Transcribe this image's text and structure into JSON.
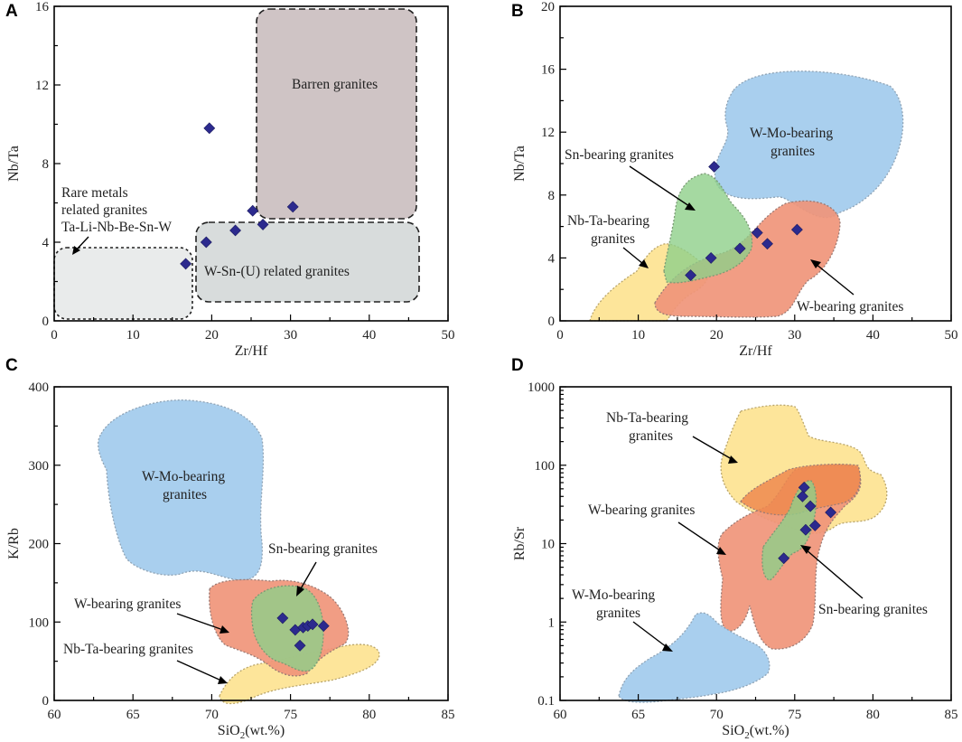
{
  "chart_data": [
    {
      "panel": "A",
      "type": "scatter",
      "title": "",
      "xlabel": "Zr/Hf",
      "ylabel": "Nb/Ta",
      "xlim": [
        0,
        50
      ],
      "ylim": [
        0,
        16
      ],
      "xticks": [
        0,
        10,
        20,
        30,
        40,
        50
      ],
      "yticks": [
        0,
        4,
        8,
        12,
        16
      ],
      "fields": [
        {
          "label": "Barren granites",
          "color": "#cfc4c5"
        },
        {
          "label": "W-Sn-(U) related granites",
          "color": "#d8dcdc"
        },
        {
          "label": "Rare metals related granites Ta-Li-Nb-Be-Sn-W",
          "color": "#e9ebeb"
        }
      ],
      "annotations": [
        "Barren granites",
        "W-Sn-(U) related granites",
        "Rare metals",
        "related granites",
        "Ta-Li-Nb-Be-Sn-W"
      ],
      "points": [
        {
          "x": 16.7,
          "y": 2.9
        },
        {
          "x": 19.3,
          "y": 4.0
        },
        {
          "x": 19.7,
          "y": 9.8
        },
        {
          "x": 23.0,
          "y": 4.6
        },
        {
          "x": 25.2,
          "y": 5.6
        },
        {
          "x": 26.5,
          "y": 4.9
        },
        {
          "x": 30.3,
          "y": 5.8
        }
      ]
    },
    {
      "panel": "B",
      "type": "scatter",
      "xlabel": "Zr/Hf",
      "ylabel": "Nb/Ta",
      "xlim": [
        0,
        50
      ],
      "ylim": [
        0,
        20
      ],
      "xticks": [
        0,
        10,
        20,
        30,
        40,
        50
      ],
      "yticks": [
        0,
        4,
        8,
        12,
        16,
        20
      ],
      "fields": [
        {
          "label": "W-Mo-bearing granites",
          "color": "#a9cfee"
        },
        {
          "label": "Sn-bearing granites",
          "color": "#9fd49a"
        },
        {
          "label": "Nb-Ta-bearing granites",
          "color": "#fde59a"
        },
        {
          "label": "W-bearing granites",
          "color": "#f0957a"
        }
      ],
      "annotations": [
        "W-Mo-bearing",
        "granites",
        "Sn-bearing granites",
        "Nb-Ta-bearing",
        "granites",
        "W-bearing granites"
      ],
      "points": [
        {
          "x": 16.7,
          "y": 2.9
        },
        {
          "x": 19.3,
          "y": 4.0
        },
        {
          "x": 19.7,
          "y": 9.8
        },
        {
          "x": 23.0,
          "y": 4.6
        },
        {
          "x": 25.2,
          "y": 5.6
        },
        {
          "x": 26.5,
          "y": 4.9
        },
        {
          "x": 30.3,
          "y": 5.8
        }
      ]
    },
    {
      "panel": "C",
      "type": "scatter",
      "xlabel": "SiO2(wt.%)",
      "ylabel": "K/Rb",
      "xlim": [
        60,
        85
      ],
      "ylim": [
        0,
        400
      ],
      "xticks": [
        60,
        65,
        70,
        75,
        80,
        85
      ],
      "yticks": [
        0,
        100,
        200,
        300,
        400
      ],
      "fields": [
        {
          "label": "W-Mo-bearing granites",
          "color": "#a9cfee"
        },
        {
          "label": "Sn-bearing granites",
          "color": "#9fd49a"
        },
        {
          "label": "W-bearing granites",
          "color": "#f0957a"
        },
        {
          "label": "Nb-Ta-bearing granites",
          "color": "#fde59a"
        }
      ],
      "annotations": [
        "W-Mo-bearing",
        "granites",
        "Sn-bearing granites",
        "W-bearing granites",
        "Nb-Ta-bearing granites"
      ],
      "points": [
        {
          "x": 74.5,
          "y": 105
        },
        {
          "x": 75.3,
          "y": 90
        },
        {
          "x": 75.6,
          "y": 70
        },
        {
          "x": 75.8,
          "y": 93
        },
        {
          "x": 76.1,
          "y": 95
        },
        {
          "x": 76.4,
          "y": 97
        },
        {
          "x": 77.1,
          "y": 95
        }
      ]
    },
    {
      "panel": "D",
      "type": "scatter",
      "xlabel": "SiO2(wt.%)",
      "ylabel": "Rb/Sr",
      "xscale": "linear",
      "yscale": "log",
      "xlim": [
        60,
        85
      ],
      "ylim": [
        0.1,
        1000
      ],
      "xticks": [
        60,
        65,
        70,
        75,
        80,
        85
      ],
      "yticks": [
        0.1,
        1,
        10,
        100,
        1000
      ],
      "fields": [
        {
          "label": "Nb-Ta-bearing granites",
          "color": "#fde59a"
        },
        {
          "label": "W-bearing granites",
          "color": "#f0957a"
        },
        {
          "label": "Sn-bearing granites",
          "color": "#9fd49a"
        },
        {
          "label": "W-Mo-bearing granites",
          "color": "#a9cfee"
        }
      ],
      "annotations": [
        "Nb-Ta-bearing",
        "granites",
        "W-bearing granites",
        "Sn-bearing granites",
        "W-Mo-bearing",
        "granites"
      ],
      "points": [
        {
          "x": 74.3,
          "y": 6.5
        },
        {
          "x": 75.5,
          "y": 40
        },
        {
          "x": 75.6,
          "y": 52
        },
        {
          "x": 75.7,
          "y": 15
        },
        {
          "x": 76.0,
          "y": 30
        },
        {
          "x": 76.3,
          "y": 17
        },
        {
          "x": 77.3,
          "y": 25
        }
      ]
    }
  ],
  "panel_letters": [
    "A",
    "B",
    "C",
    "D"
  ],
  "colors": {
    "wmo": "#a9cfee",
    "sn": "#9fd49a",
    "nbta": "#fde59a",
    "w": "#f0957a",
    "barren": "#cfc4c5",
    "wsnu": "#d8dcdc",
    "rare": "#e9ebeb",
    "point": "#2c2a8e"
  }
}
